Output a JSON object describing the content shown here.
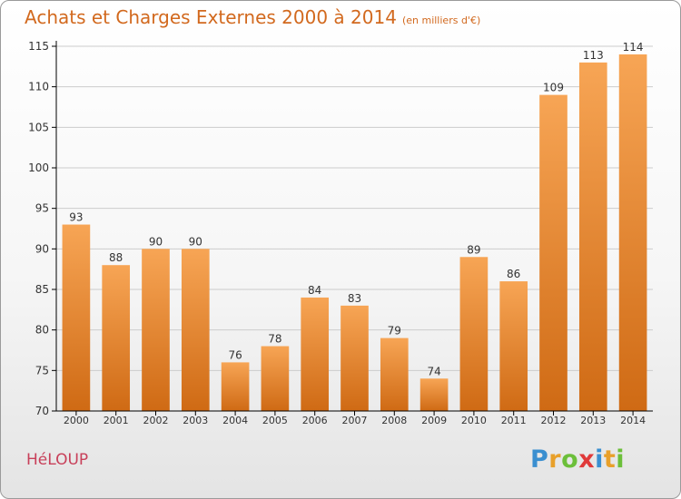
{
  "header": {
    "title": "Achats et Charges Externes 2000 à 2014",
    "unit": "(en milliers d'€)"
  },
  "footer": {
    "commune": "HéLOUP",
    "brand": [
      "P",
      "r",
      "o",
      "x",
      "i",
      "t",
      "i"
    ],
    "brand_colors": [
      "#3a8fd0",
      "#e8a02a",
      "#6cbf3a",
      "#e03a3a",
      "#3a8fd0",
      "#e8a02a",
      "#6cbf3a"
    ]
  },
  "colors": {
    "bar_light": "#f7a555",
    "bar_dark": "#cf6a14",
    "axis": "#000000",
    "grid": "#cccccc"
  },
  "chart_data": {
    "type": "bar",
    "categories": [
      "2000",
      "2001",
      "2002",
      "2003",
      "2004",
      "2005",
      "2006",
      "2007",
      "2008",
      "2009",
      "2010",
      "2011",
      "2012",
      "2013",
      "2014"
    ],
    "values": [
      93,
      88,
      90,
      90,
      76,
      78,
      84,
      83,
      79,
      74,
      89,
      86,
      109,
      113,
      114
    ],
    "ylim": [
      70,
      115
    ],
    "yticks": [
      70,
      75,
      80,
      85,
      90,
      95,
      100,
      105,
      110,
      115
    ],
    "grid": true,
    "data_labels": true
  }
}
